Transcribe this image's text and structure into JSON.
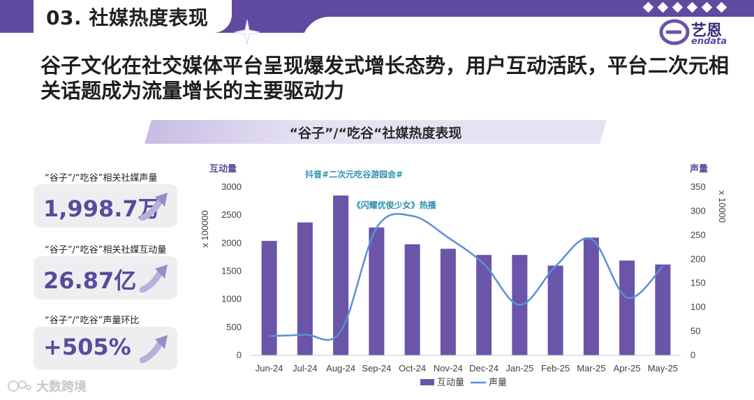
{
  "header": {
    "section_title": "03. 社媒热度表现",
    "logo_cn": "艺恩",
    "logo_en": "endata"
  },
  "headline": "谷子文化在社交媒体平台呈现爆发式增长态势，用户互动活跃，平台二次元相关话题成为流量增长的主要驱动力",
  "banner_title": "“谷子”/“吃谷“社媒热度表现",
  "kpis": [
    {
      "label": "“谷子”/“吃谷”相关社媒声量",
      "value": "1,998.7万"
    },
    {
      "label": "“谷子”/“吃谷”相关社媒互动量",
      "value": "26.87亿"
    },
    {
      "label": "“谷子”/“吃谷”声量环比",
      "value": "+505%"
    }
  ],
  "watermark": "大数跨境",
  "colors": {
    "accent": "#5e4a9e",
    "bar": "#6a55a8",
    "line": "#5b8fd8",
    "annotation": "#2e90b0"
  },
  "chart_data": {
    "type": "bar+line",
    "categories": [
      "Jun-24",
      "Jul-24",
      "Aug-24",
      "Sep-24",
      "Oct-24",
      "Nov-24",
      "Dec-24",
      "Jan-25",
      "Feb-25",
      "Mar-25",
      "Apr-25",
      "May-25"
    ],
    "series": [
      {
        "name": "互动量",
        "type": "bar",
        "axis": "left",
        "values": [
          2040,
          2370,
          2850,
          2280,
          1980,
          1900,
          1790,
          1790,
          1600,
          2100,
          1690,
          1620
        ]
      },
      {
        "name": "声量",
        "type": "line",
        "axis": "right",
        "values": [
          40,
          43,
          50,
          265,
          290,
          245,
          190,
          105,
          185,
          242,
          120,
          185
        ]
      }
    ],
    "left_axis": {
      "title": "互动量",
      "unit": "x 100000",
      "ylim": [
        0,
        3000
      ],
      "ticks": [
        0,
        500,
        1000,
        1500,
        2000,
        2500,
        3000
      ]
    },
    "right_axis": {
      "title": "声量",
      "unit": "x 10000",
      "ylim": [
        0,
        350
      ],
      "ticks": [
        0,
        50,
        100,
        150,
        200,
        250,
        300,
        350
      ]
    },
    "annotations": [
      {
        "text": "抖音#二次元吃谷游园会#",
        "x": "Aug-24"
      },
      {
        "text": "《闪耀优俊少女》热播",
        "x": "Oct-24"
      }
    ],
    "legend": {
      "placement": "bottom",
      "entries": [
        "互动量",
        "声量"
      ]
    },
    "grid": false
  }
}
